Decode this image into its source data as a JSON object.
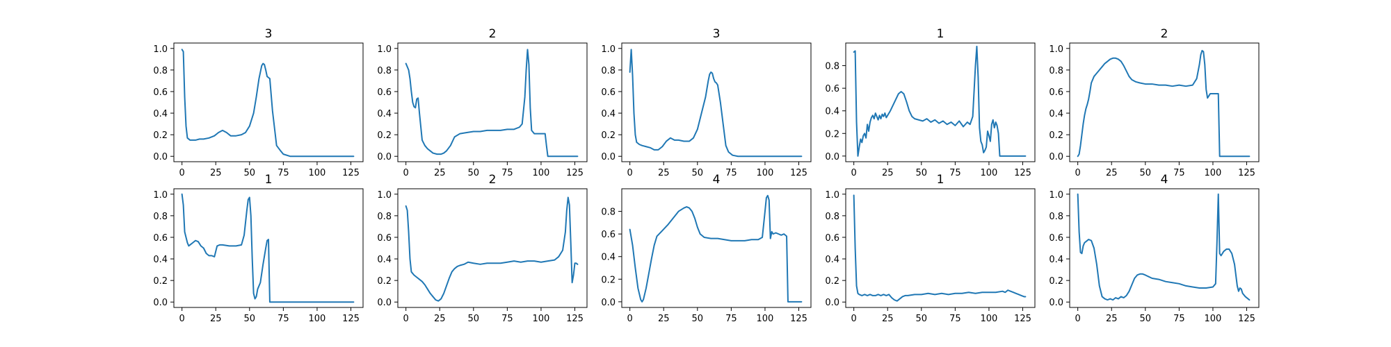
{
  "chart_data": [
    {
      "type": "line",
      "title": "3",
      "xlim": [
        -6,
        134
      ],
      "ylim": [
        -0.05,
        1.05
      ],
      "xticks": [
        0,
        25,
        50,
        75,
        100,
        125
      ],
      "yticks": [
        0.0,
        0.2,
        0.4,
        0.6,
        0.8,
        1.0
      ],
      "x": [
        0,
        1,
        2,
        3,
        4,
        6,
        8,
        10,
        13,
        16,
        20,
        24,
        27,
        30,
        33,
        36,
        40,
        44,
        47,
        50,
        53,
        55,
        57,
        59,
        60,
        61,
        62,
        63,
        64,
        65,
        67,
        70,
        73,
        75,
        80,
        90,
        100,
        110,
        120,
        127
      ],
      "series": [
        {
          "values": [
            0.99,
            0.97,
            0.55,
            0.28,
            0.17,
            0.15,
            0.15,
            0.15,
            0.16,
            0.16,
            0.17,
            0.19,
            0.22,
            0.24,
            0.22,
            0.19,
            0.19,
            0.2,
            0.22,
            0.28,
            0.4,
            0.55,
            0.72,
            0.84,
            0.86,
            0.85,
            0.8,
            0.74,
            0.73,
            0.72,
            0.42,
            0.1,
            0.05,
            0.02,
            0.0,
            0.0,
            0.0,
            0.0,
            0.0,
            0.0
          ]
        }
      ]
    },
    {
      "type": "line",
      "title": "2",
      "xlim": [
        -6,
        134
      ],
      "ylim": [
        -0.05,
        1.05
      ],
      "xticks": [
        0,
        25,
        50,
        75,
        100,
        125
      ],
      "yticks": [
        0.0,
        0.2,
        0.4,
        0.6,
        0.8,
        1.0
      ],
      "x": [
        0,
        2,
        3,
        4,
        5,
        6,
        7,
        8,
        9,
        10,
        12,
        14,
        16,
        18,
        20,
        23,
        26,
        28,
        30,
        33,
        36,
        40,
        45,
        50,
        55,
        60,
        65,
        70,
        75,
        80,
        84,
        86,
        88,
        89,
        90,
        91,
        92,
        93,
        95,
        100,
        103,
        104,
        105,
        110,
        120,
        127
      ],
      "series": [
        {
          "values": [
            0.86,
            0.8,
            0.72,
            0.6,
            0.5,
            0.46,
            0.45,
            0.53,
            0.54,
            0.4,
            0.15,
            0.1,
            0.07,
            0.05,
            0.03,
            0.02,
            0.02,
            0.03,
            0.05,
            0.1,
            0.18,
            0.21,
            0.22,
            0.23,
            0.23,
            0.24,
            0.24,
            0.24,
            0.25,
            0.25,
            0.27,
            0.3,
            0.55,
            0.8,
            0.99,
            0.85,
            0.45,
            0.24,
            0.21,
            0.21,
            0.21,
            0.1,
            0.0,
            0.0,
            0.0,
            0.0
          ]
        }
      ]
    },
    {
      "type": "line",
      "title": "3",
      "xlim": [
        -6,
        134
      ],
      "ylim": [
        -0.05,
        1.05
      ],
      "xticks": [
        0,
        25,
        50,
        75,
        100,
        125
      ],
      "yticks": [
        0.0,
        0.2,
        0.4,
        0.6,
        0.8,
        1.0
      ],
      "x": [
        0,
        1,
        2,
        3,
        4,
        5,
        7,
        9,
        12,
        15,
        18,
        21,
        24,
        27,
        30,
        33,
        36,
        40,
        44,
        47,
        50,
        53,
        56,
        58,
        59,
        60,
        61,
        62,
        63,
        64,
        65,
        67,
        69,
        71,
        73,
        76,
        80,
        90,
        100,
        110,
        120,
        127
      ],
      "series": [
        {
          "values": [
            0.78,
            0.99,
            0.75,
            0.4,
            0.2,
            0.13,
            0.11,
            0.1,
            0.09,
            0.08,
            0.06,
            0.06,
            0.09,
            0.14,
            0.17,
            0.15,
            0.15,
            0.14,
            0.14,
            0.17,
            0.25,
            0.4,
            0.55,
            0.7,
            0.76,
            0.78,
            0.77,
            0.72,
            0.69,
            0.68,
            0.66,
            0.5,
            0.3,
            0.1,
            0.04,
            0.01,
            0.0,
            0.0,
            0.0,
            0.0,
            0.0,
            0.0
          ]
        }
      ]
    },
    {
      "type": "line",
      "title": "1",
      "xlim": [
        -6,
        134
      ],
      "ylim": [
        -0.05,
        1.0
      ],
      "xticks": [
        0,
        25,
        50,
        75,
        100,
        125
      ],
      "yticks": [
        0.0,
        0.2,
        0.4,
        0.6,
        0.8
      ],
      "x": [
        0,
        1,
        2,
        3,
        4,
        5,
        6,
        7,
        8,
        9,
        10,
        11,
        12,
        13,
        14,
        15,
        16,
        17,
        18,
        19,
        20,
        21,
        22,
        23,
        24,
        25,
        27,
        29,
        31,
        33,
        35,
        37,
        39,
        41,
        43,
        45,
        48,
        51,
        54,
        57,
        60,
        63,
        66,
        69,
        72,
        75,
        78,
        81,
        84,
        86,
        88,
        90,
        91,
        92,
        93,
        94,
        95,
        96,
        97,
        98,
        99,
        100,
        101,
        102,
        103,
        104,
        105,
        106,
        107,
        108,
        110,
        115,
        120,
        127
      ],
      "series": [
        {
          "values": [
            0.92,
            0.93,
            0.3,
            0.0,
            0.08,
            0.15,
            0.12,
            0.18,
            0.2,
            0.16,
            0.28,
            0.22,
            0.3,
            0.34,
            0.36,
            0.33,
            0.38,
            0.35,
            0.32,
            0.36,
            0.33,
            0.37,
            0.35,
            0.38,
            0.34,
            0.36,
            0.4,
            0.45,
            0.5,
            0.55,
            0.57,
            0.55,
            0.48,
            0.4,
            0.35,
            0.33,
            0.32,
            0.31,
            0.33,
            0.3,
            0.32,
            0.29,
            0.31,
            0.28,
            0.3,
            0.27,
            0.31,
            0.26,
            0.3,
            0.28,
            0.35,
            0.8,
            0.97,
            0.7,
            0.25,
            0.13,
            0.1,
            0.03,
            0.05,
            0.08,
            0.22,
            0.18,
            0.13,
            0.28,
            0.32,
            0.25,
            0.3,
            0.27,
            0.2,
            0.0,
            0.0,
            0.0,
            0.0,
            0.0
          ]
        }
      ]
    },
    {
      "type": "line",
      "title": "2",
      "xlim": [
        -6,
        134
      ],
      "ylim": [
        -0.05,
        1.05
      ],
      "xticks": [
        0,
        25,
        50,
        75,
        100,
        125
      ],
      "yticks": [
        0.0,
        0.2,
        0.4,
        0.6,
        0.8,
        1.0
      ],
      "x": [
        0,
        1,
        2,
        3,
        4,
        5,
        6,
        7,
        8,
        9,
        10,
        12,
        14,
        16,
        18,
        20,
        22,
        24,
        26,
        28,
        30,
        32,
        34,
        36,
        38,
        40,
        43,
        46,
        50,
        55,
        60,
        65,
        70,
        75,
        80,
        85,
        88,
        90,
        91,
        92,
        93,
        94,
        95,
        96,
        97,
        98,
        99,
        100,
        101,
        102,
        103,
        104,
        105,
        106,
        110,
        120,
        127
      ],
      "series": [
        {
          "values": [
            0.0,
            0.02,
            0.1,
            0.2,
            0.3,
            0.38,
            0.44,
            0.48,
            0.53,
            0.6,
            0.68,
            0.74,
            0.77,
            0.8,
            0.83,
            0.86,
            0.88,
            0.9,
            0.91,
            0.91,
            0.9,
            0.88,
            0.84,
            0.79,
            0.74,
            0.71,
            0.69,
            0.68,
            0.67,
            0.67,
            0.66,
            0.66,
            0.65,
            0.66,
            0.65,
            0.66,
            0.72,
            0.85,
            0.94,
            0.98,
            0.97,
            0.85,
            0.62,
            0.54,
            0.56,
            0.58,
            0.58,
            0.58,
            0.58,
            0.58,
            0.58,
            0.58,
            0.0,
            0.0,
            0.0,
            0.0,
            0.0
          ]
        }
      ]
    },
    {
      "type": "line",
      "title": "1",
      "xlim": [
        -6,
        134
      ],
      "ylim": [
        -0.05,
        1.05
      ],
      "xticks": [
        0,
        25,
        50,
        75,
        100,
        125
      ],
      "yticks": [
        0.0,
        0.2,
        0.4,
        0.6,
        0.8,
        1.0
      ],
      "x": [
        0,
        1,
        2,
        3,
        4,
        5,
        6,
        8,
        10,
        12,
        14,
        16,
        18,
        20,
        22,
        24,
        26,
        28,
        30,
        35,
        40,
        44,
        46,
        48,
        49,
        50,
        51,
        52,
        53,
        54,
        55,
        56,
        58,
        60,
        62,
        63,
        64,
        65,
        70,
        80,
        90,
        100,
        110,
        120,
        127
      ],
      "series": [
        {
          "values": [
            1.0,
            0.9,
            0.65,
            0.6,
            0.55,
            0.52,
            0.53,
            0.55,
            0.57,
            0.56,
            0.52,
            0.5,
            0.45,
            0.43,
            0.43,
            0.42,
            0.52,
            0.53,
            0.53,
            0.52,
            0.52,
            0.53,
            0.62,
            0.85,
            0.95,
            0.97,
            0.8,
            0.4,
            0.08,
            0.03,
            0.05,
            0.12,
            0.18,
            0.35,
            0.5,
            0.57,
            0.58,
            0.0,
            0.0,
            0.0,
            0.0,
            0.0,
            0.0,
            0.0,
            0.0
          ]
        }
      ]
    },
    {
      "type": "line",
      "title": "2",
      "xlim": [
        -6,
        134
      ],
      "ylim": [
        -0.05,
        1.05
      ],
      "xticks": [
        0,
        25,
        50,
        75,
        100,
        125
      ],
      "yticks": [
        0.0,
        0.2,
        0.4,
        0.6,
        0.8,
        1.0
      ],
      "x": [
        0,
        1,
        2,
        3,
        4,
        6,
        8,
        10,
        12,
        14,
        16,
        18,
        20,
        22,
        24,
        26,
        28,
        30,
        32,
        34,
        36,
        38,
        40,
        43,
        46,
        50,
        55,
        60,
        65,
        70,
        75,
        80,
        85,
        90,
        95,
        100,
        105,
        110,
        113,
        116,
        118,
        119,
        120,
        121,
        122,
        123,
        124,
        125,
        126,
        127
      ],
      "series": [
        {
          "values": [
            0.89,
            0.85,
            0.65,
            0.4,
            0.28,
            0.25,
            0.23,
            0.21,
            0.19,
            0.16,
            0.12,
            0.08,
            0.05,
            0.02,
            0.01,
            0.03,
            0.08,
            0.15,
            0.22,
            0.28,
            0.31,
            0.33,
            0.34,
            0.35,
            0.37,
            0.36,
            0.35,
            0.36,
            0.36,
            0.36,
            0.37,
            0.38,
            0.37,
            0.38,
            0.38,
            0.37,
            0.38,
            0.39,
            0.42,
            0.48,
            0.65,
            0.85,
            0.97,
            0.9,
            0.55,
            0.18,
            0.25,
            0.36,
            0.36,
            0.35
          ]
        }
      ]
    },
    {
      "type": "line",
      "title": "4",
      "xlim": [
        -6,
        134
      ],
      "ylim": [
        -0.05,
        1.0
      ],
      "xticks": [
        0,
        25,
        50,
        75,
        100,
        125
      ],
      "yticks": [
        0.0,
        0.2,
        0.4,
        0.6,
        0.8
      ],
      "x": [
        0,
        2,
        4,
        6,
        8,
        9,
        10,
        12,
        14,
        16,
        18,
        20,
        24,
        28,
        32,
        36,
        40,
        42,
        44,
        46,
        48,
        50,
        52,
        55,
        60,
        65,
        70,
        75,
        80,
        85,
        90,
        95,
        98,
        100,
        101,
        102,
        103,
        104,
        105,
        106,
        108,
        110,
        112,
        114,
        115,
        116,
        117,
        120,
        127
      ],
      "series": [
        {
          "values": [
            0.64,
            0.5,
            0.3,
            0.12,
            0.02,
            0.0,
            0.02,
            0.12,
            0.25,
            0.38,
            0.5,
            0.58,
            0.63,
            0.68,
            0.74,
            0.8,
            0.83,
            0.84,
            0.83,
            0.8,
            0.74,
            0.66,
            0.6,
            0.57,
            0.56,
            0.56,
            0.55,
            0.54,
            0.54,
            0.54,
            0.55,
            0.55,
            0.57,
            0.8,
            0.92,
            0.94,
            0.9,
            0.56,
            0.62,
            0.6,
            0.61,
            0.6,
            0.59,
            0.6,
            0.59,
            0.58,
            0.0,
            0.0,
            0.0
          ]
        }
      ]
    },
    {
      "type": "line",
      "title": "1",
      "xlim": [
        -6,
        134
      ],
      "ylim": [
        -0.05,
        1.05
      ],
      "xticks": [
        0,
        25,
        50,
        75,
        100,
        125
      ],
      "yticks": [
        0.0,
        0.2,
        0.4,
        0.6,
        0.8,
        1.0
      ],
      "x": [
        0,
        1,
        2,
        3,
        4,
        6,
        8,
        10,
        12,
        14,
        16,
        18,
        20,
        22,
        24,
        26,
        28,
        30,
        32,
        34,
        36,
        38,
        40,
        45,
        50,
        55,
        60,
        65,
        70,
        75,
        80,
        85,
        90,
        95,
        100,
        105,
        110,
        112,
        114,
        116,
        118,
        120,
        122,
        124,
        126,
        127
      ],
      "series": [
        {
          "values": [
            0.99,
            0.5,
            0.15,
            0.08,
            0.07,
            0.06,
            0.07,
            0.06,
            0.07,
            0.06,
            0.06,
            0.07,
            0.06,
            0.07,
            0.06,
            0.07,
            0.04,
            0.02,
            0.01,
            0.03,
            0.05,
            0.06,
            0.06,
            0.07,
            0.07,
            0.08,
            0.07,
            0.08,
            0.07,
            0.08,
            0.08,
            0.09,
            0.08,
            0.09,
            0.09,
            0.09,
            0.1,
            0.09,
            0.11,
            0.1,
            0.09,
            0.08,
            0.07,
            0.06,
            0.05,
            0.05
          ]
        }
      ]
    },
    {
      "type": "line",
      "title": "4",
      "xlim": [
        -6,
        134
      ],
      "ylim": [
        -0.05,
        1.05
      ],
      "xticks": [
        0,
        25,
        50,
        75,
        100,
        125
      ],
      "yticks": [
        0.0,
        0.2,
        0.4,
        0.6,
        0.8,
        1.0
      ],
      "x": [
        0,
        1,
        2,
        3,
        4,
        5,
        6,
        8,
        10,
        12,
        14,
        16,
        18,
        20,
        22,
        24,
        26,
        28,
        30,
        32,
        34,
        36,
        38,
        40,
        42,
        44,
        46,
        48,
        50,
        55,
        60,
        65,
        70,
        75,
        80,
        85,
        90,
        95,
        100,
        102,
        103,
        104,
        105,
        106,
        108,
        110,
        112,
        114,
        116,
        118,
        119,
        120,
        121,
        122,
        124,
        126,
        127
      ],
      "series": [
        {
          "values": [
            1.0,
            0.65,
            0.46,
            0.45,
            0.52,
            0.55,
            0.56,
            0.58,
            0.57,
            0.5,
            0.35,
            0.15,
            0.05,
            0.03,
            0.02,
            0.03,
            0.02,
            0.04,
            0.03,
            0.05,
            0.04,
            0.06,
            0.1,
            0.16,
            0.22,
            0.25,
            0.26,
            0.26,
            0.25,
            0.22,
            0.21,
            0.19,
            0.18,
            0.17,
            0.15,
            0.14,
            0.13,
            0.13,
            0.14,
            0.17,
            0.55,
            1.0,
            0.45,
            0.43,
            0.47,
            0.49,
            0.49,
            0.45,
            0.35,
            0.15,
            0.1,
            0.13,
            0.12,
            0.08,
            0.05,
            0.03,
            0.02
          ]
        }
      ]
    }
  ]
}
